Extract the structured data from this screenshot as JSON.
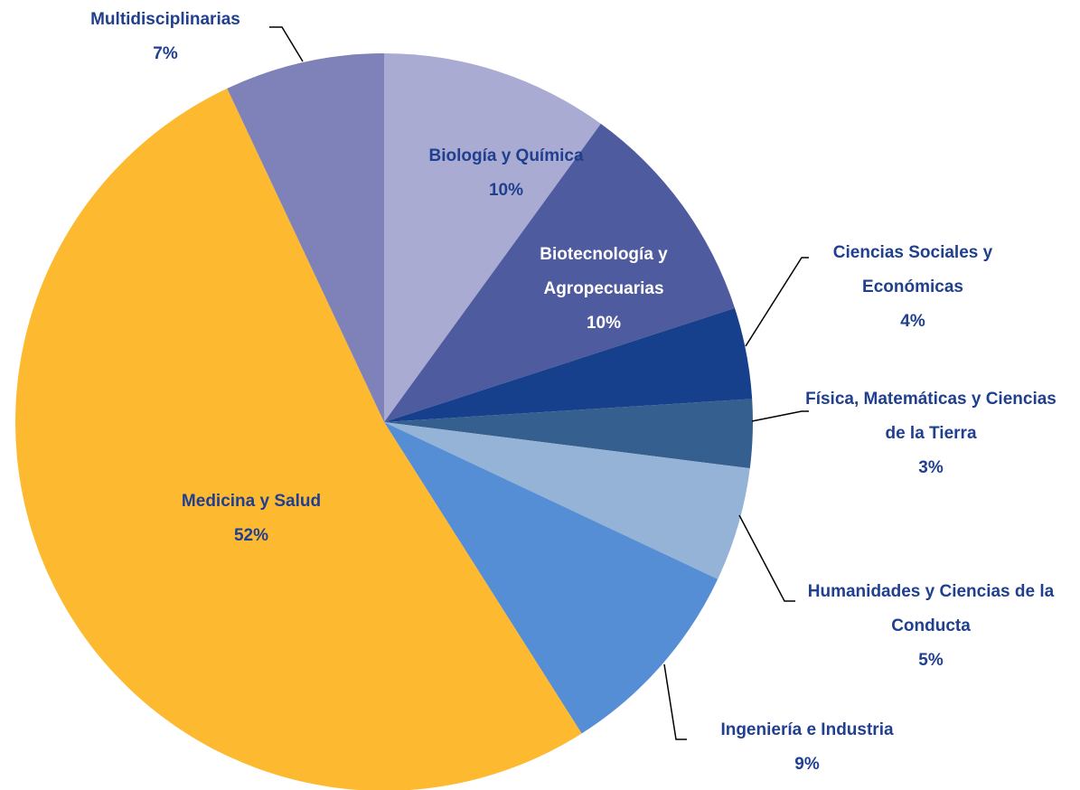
{
  "chart_data": {
    "type": "pie",
    "categories": [
      "Biología y Química",
      "Biotecnología y Agropecuarias",
      "Ciencias Sociales y Económicas",
      "Física, Matemáticas y Ciencias de la Tierra",
      "Humanidades y Ciencias de la Conducta",
      "Ingeniería e Industria",
      "Medicina y Salud",
      "Multidisciplinarias"
    ],
    "values": [
      10,
      10,
      4,
      3,
      5,
      9,
      52,
      7
    ],
    "value_labels": [
      "10%",
      "10%",
      "4%",
      "3%",
      "5%",
      "9%",
      "52%",
      "7%"
    ],
    "colors": [
      "#a9abd2",
      "#4f5b9f",
      "#163f8c",
      "#355f8e",
      "#95b3d7",
      "#558ed5",
      "#fdb930",
      "#7f82b8"
    ]
  }
}
